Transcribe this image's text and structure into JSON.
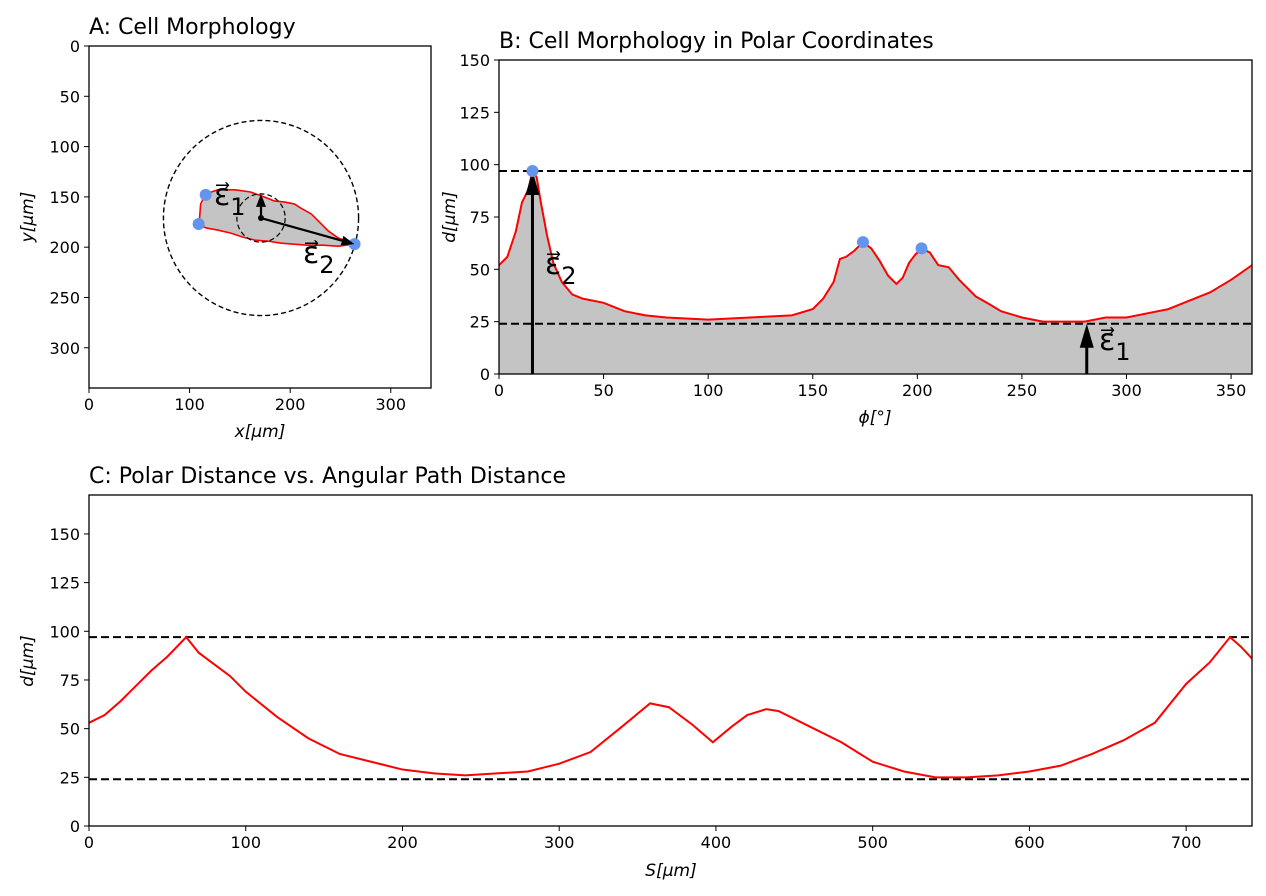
{
  "colors": {
    "contour": "#ff0000",
    "fill": "#c4c4c4",
    "marker": "#6495ed",
    "line": "#000000"
  },
  "chart_data": [
    {
      "id": "A",
      "type": "scatter",
      "title": "A: Cell Morphology",
      "xlabel": "x[μm]",
      "ylabel": "y[μm]",
      "xlim": [
        0,
        340
      ],
      "ylim": [
        340,
        0
      ],
      "xticks": [
        0,
        100,
        200,
        300
      ],
      "yticks": [
        0,
        50,
        100,
        150,
        200,
        250,
        300
      ],
      "center": [
        171,
        171
      ],
      "outer_circle_radius": 97,
      "inner_circle_radius": 24,
      "contour": [
        [
          263,
          197
        ],
        [
          248,
          191
        ],
        [
          238,
          184
        ],
        [
          229,
          175
        ],
        [
          221,
          167
        ],
        [
          212,
          162
        ],
        [
          204,
          157
        ],
        [
          194,
          155
        ],
        [
          184,
          154
        ],
        [
          174,
          150
        ],
        [
          160,
          145
        ],
        [
          145,
          143
        ],
        [
          128,
          143
        ],
        [
          116,
          147
        ],
        [
          111,
          157
        ],
        [
          110,
          170
        ],
        [
          109,
          178
        ],
        [
          117,
          181
        ],
        [
          128,
          183
        ],
        [
          141,
          186
        ],
        [
          153,
          190
        ],
        [
          165,
          193
        ],
        [
          178,
          194
        ],
        [
          191,
          196
        ],
        [
          204,
          197
        ],
        [
          217,
          198
        ],
        [
          232,
          198
        ],
        [
          248,
          199
        ]
      ],
      "key_points": [
        [
          116,
          148
        ],
        [
          109,
          177
        ],
        [
          264,
          197
        ]
      ],
      "vectors": [
        {
          "label": "ε⃗",
          "sub": "1",
          "to": [
            171,
            147
          ]
        },
        {
          "label": "ε⃗",
          "sub": "2",
          "to": [
            264,
            197
          ]
        }
      ]
    },
    {
      "id": "B",
      "type": "area",
      "title": "B: Cell Morphology in Polar Coordinates",
      "xlabel": "ϕ[°]",
      "ylabel": "d[μm]",
      "xlim": [
        0,
        360
      ],
      "ylim": [
        0,
        150
      ],
      "xticks": [
        0,
        50,
        100,
        150,
        200,
        250,
        300,
        350
      ],
      "yticks": [
        0,
        25,
        50,
        75,
        100,
        125,
        150
      ],
      "hlines": [
        97,
        24
      ],
      "x": [
        0,
        4,
        8,
        11,
        14,
        16,
        18,
        20,
        23,
        26,
        30,
        35,
        40,
        50,
        60,
        70,
        80,
        100,
        120,
        140,
        150,
        155,
        160,
        163,
        166,
        170,
        174,
        178,
        182,
        186,
        190,
        193,
        196,
        199,
        202,
        206,
        210,
        215,
        220,
        228,
        235,
        240,
        250,
        260,
        270,
        280,
        290,
        300,
        310,
        320,
        330,
        340,
        350,
        360
      ],
      "y": [
        52,
        56,
        68,
        82,
        88,
        97,
        94,
        82,
        66,
        53,
        44,
        38,
        36,
        34,
        30,
        28,
        27,
        26,
        27,
        28,
        31,
        36,
        44,
        55,
        56,
        59,
        63,
        60,
        54,
        47,
        43,
        46,
        53,
        57,
        60,
        58,
        52,
        51,
        45,
        37,
        33,
        30,
        27,
        25,
        25,
        25,
        27,
        27,
        29,
        31,
        35,
        39,
        45,
        52
      ],
      "key_points": [
        [
          16,
          97
        ],
        [
          174,
          63
        ],
        [
          202,
          60
        ]
      ],
      "vectors": [
        {
          "label": "ε⃗",
          "sub": "2",
          "x": 16,
          "to": 97
        },
        {
          "label": "ε⃗",
          "sub": "1",
          "x": 281,
          "to": 24
        }
      ]
    },
    {
      "id": "C",
      "type": "line",
      "title": "C: Polar Distance vs. Angular Path Distance",
      "xlabel": "S[μm]",
      "ylabel": "d[μm]",
      "xlim": [
        0,
        742
      ],
      "ylim": [
        0,
        170
      ],
      "xticks": [
        0,
        100,
        200,
        300,
        400,
        500,
        600,
        700
      ],
      "yticks": [
        0,
        25,
        50,
        75,
        100,
        125,
        150
      ],
      "hlines": [
        97,
        24
      ],
      "x": [
        0,
        10,
        20,
        30,
        40,
        50,
        62,
        70,
        80,
        90,
        100,
        120,
        140,
        160,
        180,
        200,
        220,
        240,
        260,
        280,
        300,
        320,
        340,
        358,
        370,
        385,
        398,
        410,
        420,
        432,
        440,
        460,
        480,
        500,
        520,
        540,
        560,
        580,
        600,
        620,
        640,
        660,
        680,
        700,
        715,
        728,
        735,
        742
      ],
      "y": [
        53,
        57,
        64,
        72,
        80,
        87,
        97,
        89,
        83,
        77,
        69,
        56,
        45,
        37,
        33,
        29,
        27,
        26,
        27,
        28,
        32,
        38,
        51,
        63,
        61,
        52,
        43,
        51,
        57,
        60,
        59,
        51,
        43,
        33,
        28,
        25,
        25,
        26,
        28,
        31,
        37,
        44,
        53,
        73,
        84,
        97,
        92,
        86
      ]
    }
  ]
}
